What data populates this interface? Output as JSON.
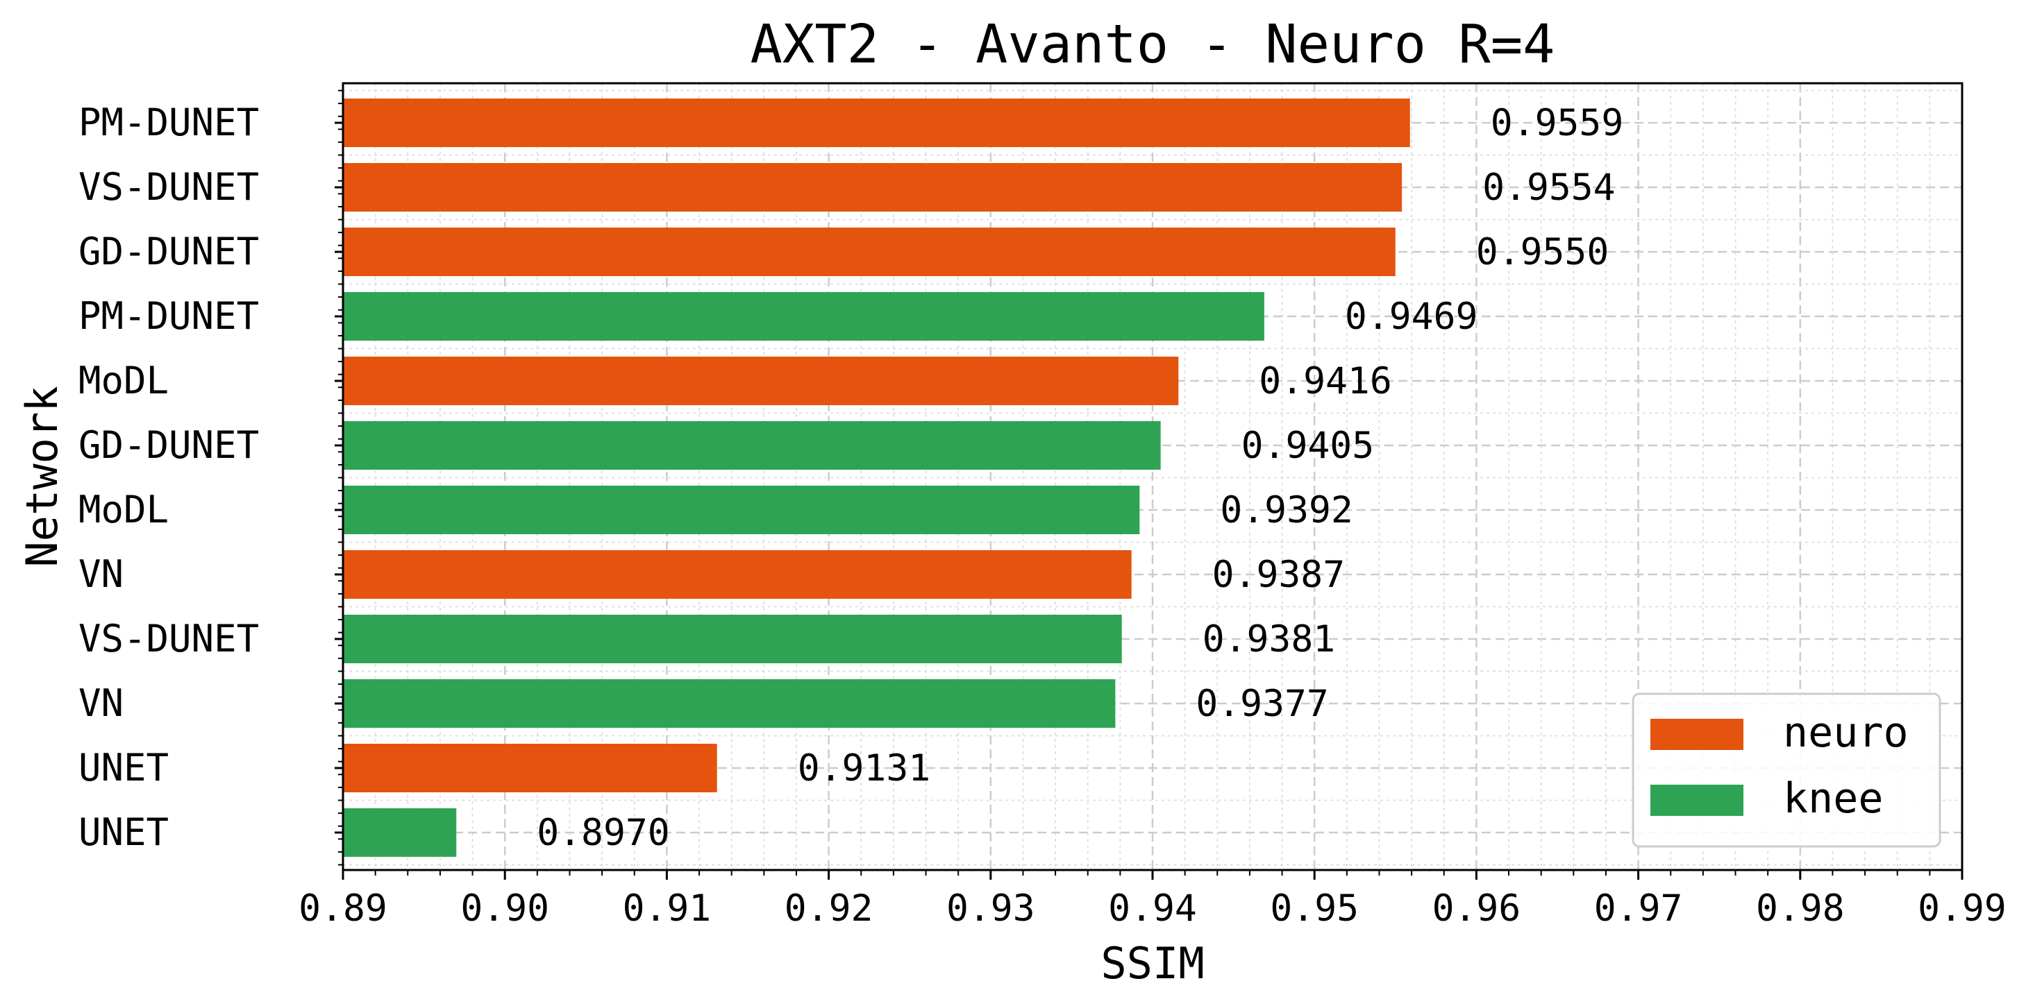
{
  "chart_data": {
    "type": "bar",
    "orientation": "horizontal",
    "title": "AXT2 - Avanto - Neuro R=4",
    "xlabel": "SSIM",
    "ylabel": "Network",
    "xlim": [
      0.89,
      0.99
    ],
    "xticks": [
      "0.89",
      "0.90",
      "0.91",
      "0.92",
      "0.93",
      "0.94",
      "0.95",
      "0.96",
      "0.97",
      "0.98",
      "0.99"
    ],
    "grid": true,
    "legend_position": "bottom-right",
    "series": [
      {
        "name": "neuro",
        "color": "#e4540f"
      },
      {
        "name": "knee",
        "color": "#2fa354"
      }
    ],
    "bars": [
      {
        "label": "PM-DUNET",
        "series": "neuro",
        "value": 0.9559,
        "value_label": "0.9559"
      },
      {
        "label": "VS-DUNET",
        "series": "neuro",
        "value": 0.9554,
        "value_label": "0.9554"
      },
      {
        "label": "GD-DUNET",
        "series": "neuro",
        "value": 0.955,
        "value_label": "0.9550"
      },
      {
        "label": "PM-DUNET",
        "series": "knee",
        "value": 0.9469,
        "value_label": "0.9469"
      },
      {
        "label": "MoDL",
        "series": "neuro",
        "value": 0.9416,
        "value_label": "0.9416"
      },
      {
        "label": "GD-DUNET",
        "series": "knee",
        "value": 0.9405,
        "value_label": "0.9405"
      },
      {
        "label": "MoDL",
        "series": "knee",
        "value": 0.9392,
        "value_label": "0.9392"
      },
      {
        "label": "VN",
        "series": "neuro",
        "value": 0.9387,
        "value_label": "0.9387"
      },
      {
        "label": "VS-DUNET",
        "series": "knee",
        "value": 0.9381,
        "value_label": "0.9381"
      },
      {
        "label": "VN",
        "series": "knee",
        "value": 0.9377,
        "value_label": "0.9377"
      },
      {
        "label": "UNET",
        "series": "neuro",
        "value": 0.9131,
        "value_label": "0.9131"
      },
      {
        "label": "UNET",
        "series": "knee",
        "value": 0.897,
        "value_label": "0.8970"
      }
    ]
  }
}
